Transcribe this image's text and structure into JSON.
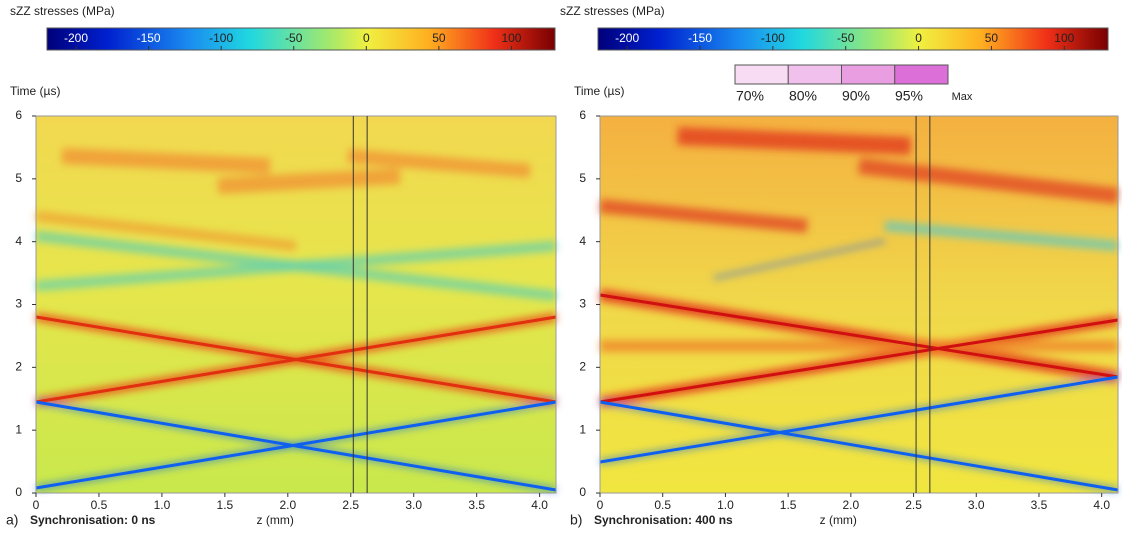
{
  "chart_data": [
    {
      "type": "heatmap",
      "colorbar_title": "sZZ stresses (MPa)",
      "clim": [
        -220,
        130
      ],
      "cticks": [
        -200,
        -150,
        -100,
        -50,
        0,
        50,
        100
      ],
      "ylabel": "Time (µs)",
      "xlabel": "z (mm)",
      "xlim": [
        0,
        4.13
      ],
      "ylim": [
        0,
        6
      ],
      "xticks": [
        0,
        0.5,
        {
          "value": 1,
          "label": "1.0"
        },
        1.5,
        {
          "value": 2,
          "label": "2.0"
        },
        2.5,
        {
          "value": 3,
          "label": "3.0"
        },
        3.5,
        {
          "value": 4,
          "label": "4.0"
        }
      ],
      "yticks": [
        0,
        1,
        2,
        3,
        4,
        5,
        6
      ],
      "vlines": [
        2.52,
        2.63
      ],
      "panel": "a)",
      "caption": "Synchronisation: 0 ns"
    },
    {
      "type": "heatmap",
      "colorbar_title": "sZZ stresses (MPa)",
      "clim": [
        -220,
        130
      ],
      "cticks": [
        -200,
        -150,
        -100,
        -50,
        0,
        50,
        100
      ],
      "ylabel": "Time (µs)",
      "xlabel": "z (mm)",
      "xlim": [
        0,
        4.13
      ],
      "ylim": [
        0,
        6
      ],
      "xticks": [
        0,
        0.5,
        {
          "value": 1,
          "label": "1.0"
        },
        1.5,
        {
          "value": 2,
          "label": "2.0"
        },
        2.5,
        {
          "value": 3,
          "label": "3.0"
        },
        3.5,
        {
          "value": 4,
          "label": "4.0"
        }
      ],
      "yticks": [
        0,
        1,
        2,
        3,
        4,
        5,
        6
      ],
      "vlines": [
        2.52,
        2.63
      ],
      "panel": "b)",
      "caption": "Synchronisation: 400 ns",
      "threshold_legend": {
        "labels": [
          "70%",
          "80%",
          "90%",
          "95%",
          "Max"
        ],
        "colors": [
          "#f7dcf3",
          "#f2c0ec",
          "#ea9ee2",
          "#dd6fd8"
        ]
      }
    }
  ]
}
